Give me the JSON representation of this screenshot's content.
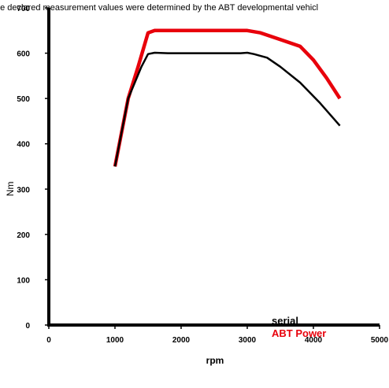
{
  "chart_data": {
    "type": "line",
    "title": "he declared measurement values were determined by the ABT developmental vehicl",
    "xlabel": "rpm",
    "ylabel": "Nm",
    "xlim": [
      0,
      5000
    ],
    "ylim": [
      0,
      700
    ],
    "x_ticks": [
      "0",
      "1000",
      "2000",
      "3000",
      "4000",
      "5000"
    ],
    "y_ticks": [
      "0",
      "100",
      "200",
      "300",
      "400",
      "500",
      "600",
      "700"
    ],
    "grid": false,
    "legend_position": "bottom-right",
    "series": [
      {
        "name": "serial",
        "color": "#000000",
        "points": [
          [
            1000,
            350
          ],
          [
            1200,
            500
          ],
          [
            1400,
            570
          ],
          [
            1500,
            598
          ],
          [
            1600,
            601
          ],
          [
            1800,
            600
          ],
          [
            2000,
            600
          ],
          [
            2500,
            600
          ],
          [
            2900,
            600
          ],
          [
            3000,
            601
          ],
          [
            3100,
            598
          ],
          [
            3300,
            590
          ],
          [
            3500,
            570
          ],
          [
            3800,
            535
          ],
          [
            4100,
            490
          ],
          [
            4400,
            440
          ]
        ]
      },
      {
        "name": "ABT Power",
        "color": "#e8000b",
        "points": [
          [
            1000,
            350
          ],
          [
            1200,
            500
          ],
          [
            1350,
            570
          ],
          [
            1500,
            645
          ],
          [
            1600,
            650
          ],
          [
            2000,
            650
          ],
          [
            2500,
            650
          ],
          [
            3000,
            650
          ],
          [
            3200,
            645
          ],
          [
            3500,
            630
          ],
          [
            3800,
            615
          ],
          [
            4000,
            585
          ],
          [
            4200,
            545
          ],
          [
            4400,
            500
          ]
        ]
      }
    ]
  }
}
